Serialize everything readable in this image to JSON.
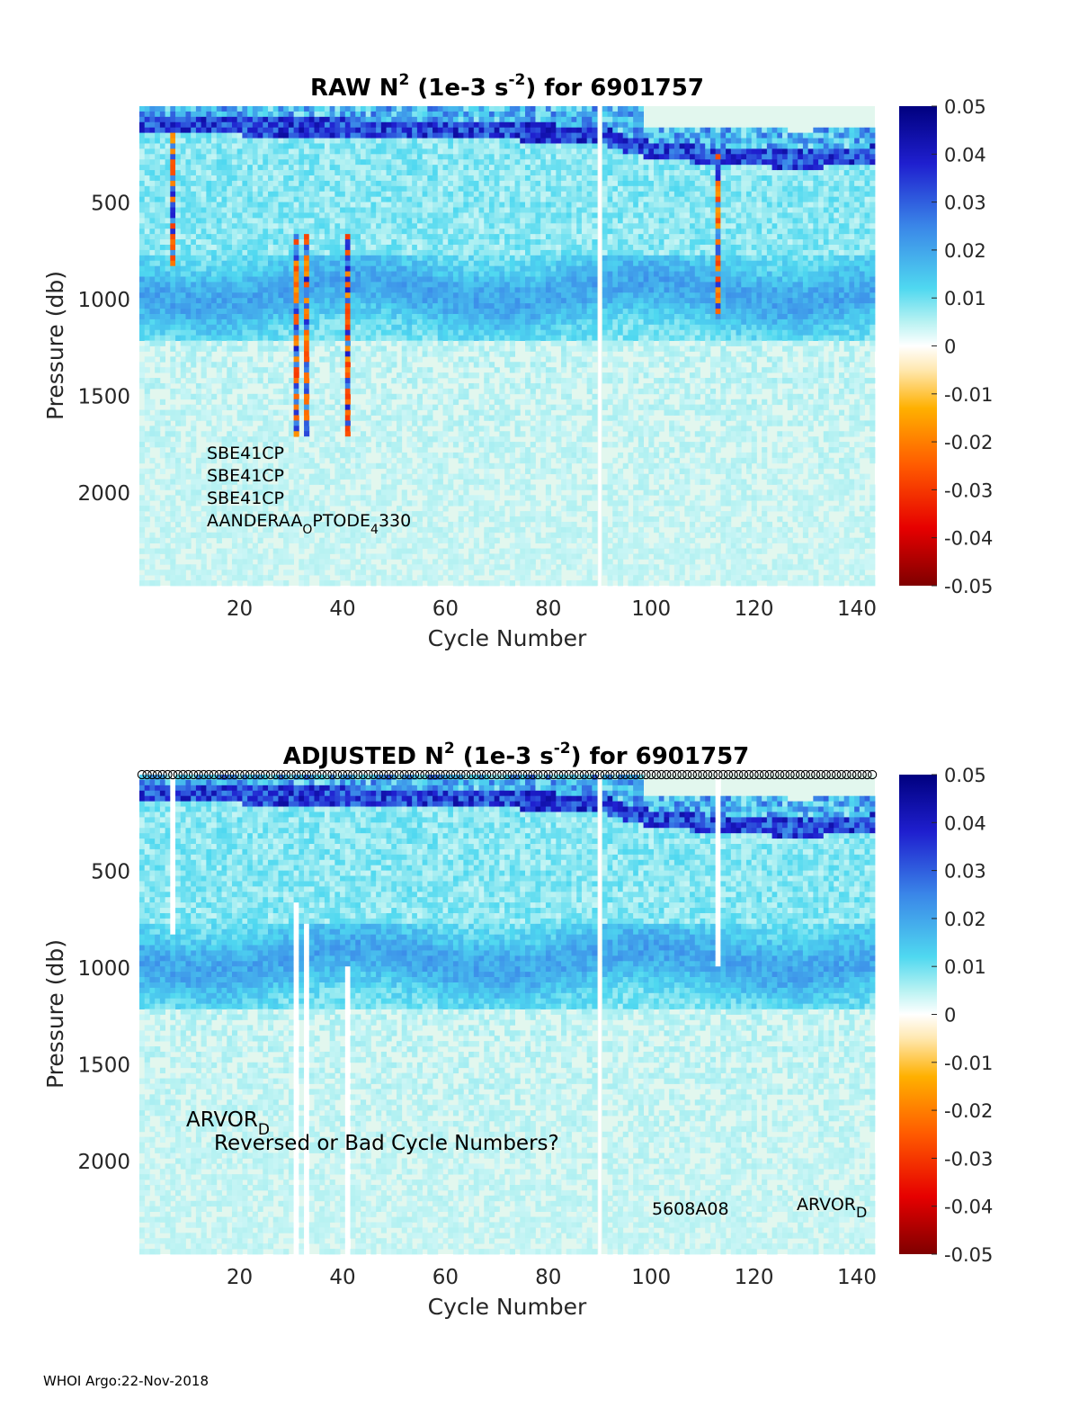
{
  "colors": {
    "background": "#ffffff",
    "field": "#e2f7ee",
    "text": "#262626"
  },
  "colorbar": {
    "ticks": [
      "0.05",
      "0.04",
      "0.03",
      "0.02",
      "0.01",
      "0",
      "-0.01",
      "-0.02",
      "-0.03",
      "-0.04",
      "-0.05"
    ],
    "colormap": "jet-like diverging"
  },
  "footer": "WHOI Argo:22-Nov-2018",
  "chart_data": [
    {
      "type": "heatmap",
      "title": "RAW N2 (1e-3 s-2) for 6901757",
      "title_parts": {
        "pre": "RAW N",
        "sup1": "2",
        "mid": " (1e-3 s",
        "sup2": "-2",
        "post": ") for 6901757"
      },
      "xlabel": "Cycle Number",
      "ylabel": "Pressure (db)",
      "x_ticks": [
        "20",
        "40",
        "60",
        "80",
        "100",
        "120",
        "140"
      ],
      "y_ticks": [
        "500",
        "1000",
        "1500",
        "2000"
      ],
      "xlim": [
        1,
        143
      ],
      "ylim": [
        0,
        2480
      ],
      "y_reversed": true,
      "clim": [
        -0.05,
        0.05
      ],
      "gap_cycles": [
        90
      ],
      "sensor_labels": [
        "SBE41CP",
        "SBE41CP",
        "SBE41CP"
      ],
      "sensor_label_last": {
        "pre": "AANDERAA",
        "sub1": "O",
        "mid": "PTODE",
        "sub2": "4",
        "post": "330"
      },
      "features": {
        "surface_max": 0.045,
        "mixed_layer_depth_by_cycle": [
          [
            1,
            100
          ],
          [
            60,
            120
          ],
          [
            90,
            150
          ],
          [
            100,
            230
          ],
          [
            115,
            260
          ],
          [
            130,
            280
          ],
          [
            143,
            250
          ]
        ],
        "thermocline_band": [
          800,
          1150
        ],
        "negative_spike_cycles": [
          7,
          31,
          33,
          41,
          113
        ]
      }
    },
    {
      "type": "heatmap",
      "title": "ADJUSTED N2 (1e-3 s-2) for 6901757",
      "title_parts": {
        "pre": "ADJUSTED N",
        "sup1": "2",
        "mid": " (1e-3 s",
        "sup2": "-2",
        "post": ") for 6901757"
      },
      "xlabel": "Cycle Number",
      "ylabel": "Pressure (db)",
      "x_ticks": [
        "20",
        "40",
        "60",
        "80",
        "100",
        "120",
        "140"
      ],
      "y_ticks": [
        "500",
        "1000",
        "1500",
        "2000"
      ],
      "xlim": [
        1,
        143
      ],
      "ylim": [
        0,
        2480
      ],
      "y_reversed": true,
      "clim": [
        -0.05,
        0.05
      ],
      "gap_cycles": [
        90
      ],
      "masked_segments": [
        [
          7,
          0,
          820
        ],
        [
          31,
          650,
          2480
        ],
        [
          33,
          780,
          2480
        ],
        [
          41,
          1000,
          2480
        ],
        [
          113,
          0,
          1000
        ]
      ],
      "marker": "open circle per cycle at top",
      "annotations": {
        "arvor_left": {
          "base": "ARVOR",
          "sub": "D"
        },
        "reversed_note": "Reversed or Bad Cycle Numbers?",
        "serial": "5608A08",
        "arvor_right": {
          "base": "ARVOR",
          "sub": "D"
        }
      }
    }
  ]
}
